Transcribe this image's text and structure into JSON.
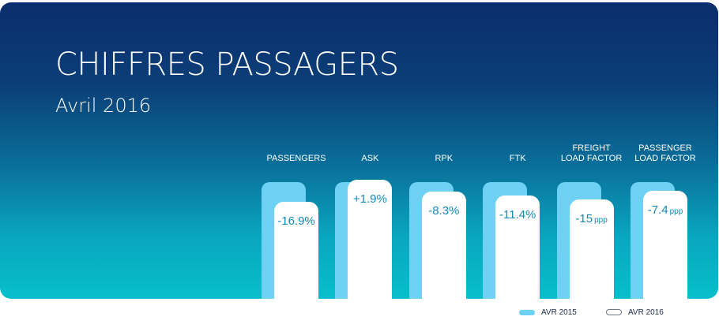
{
  "header": {
    "title": "CHIFFRES PASSAGERS",
    "subtitle": "Avril 2016"
  },
  "colors": {
    "background_top": "#0b2d6e",
    "background_bottom": "#08bfcb",
    "bar_2015": "#6ed0f2",
    "bar_2016": "#ffffff",
    "value_text": "#1389b5"
  },
  "legend": {
    "items": [
      {
        "label": "AVR 2015",
        "color": "#6ed0f2"
      },
      {
        "label": "AVR 2016",
        "color": "#ffffff"
      }
    ]
  },
  "chart_data": {
    "type": "bar",
    "categories": [
      "PASSENGERS",
      "ASK",
      "RPK",
      "FTK",
      "FREIGHT\nLOAD FACTOR",
      "PASSENGER\nLOAD FACTOR"
    ],
    "series": [
      {
        "name": "AVR 2015",
        "values": [
          100,
          100,
          100,
          100,
          100,
          100
        ]
      },
      {
        "name": "AVR 2016",
        "values": [
          83.1,
          101.9,
          91.7,
          88.6,
          85,
          92.6
        ]
      }
    ],
    "data_labels": [
      {
        "value": "-16.9%",
        "unit": ""
      },
      {
        "value": "+1.9%",
        "unit": ""
      },
      {
        "value": "-8.3%",
        "unit": ""
      },
      {
        "value": "-11.4%",
        "unit": ""
      },
      {
        "value": "-15",
        "unit": "ppp"
      },
      {
        "value": "-7.4",
        "unit": "ppp"
      }
    ]
  }
}
